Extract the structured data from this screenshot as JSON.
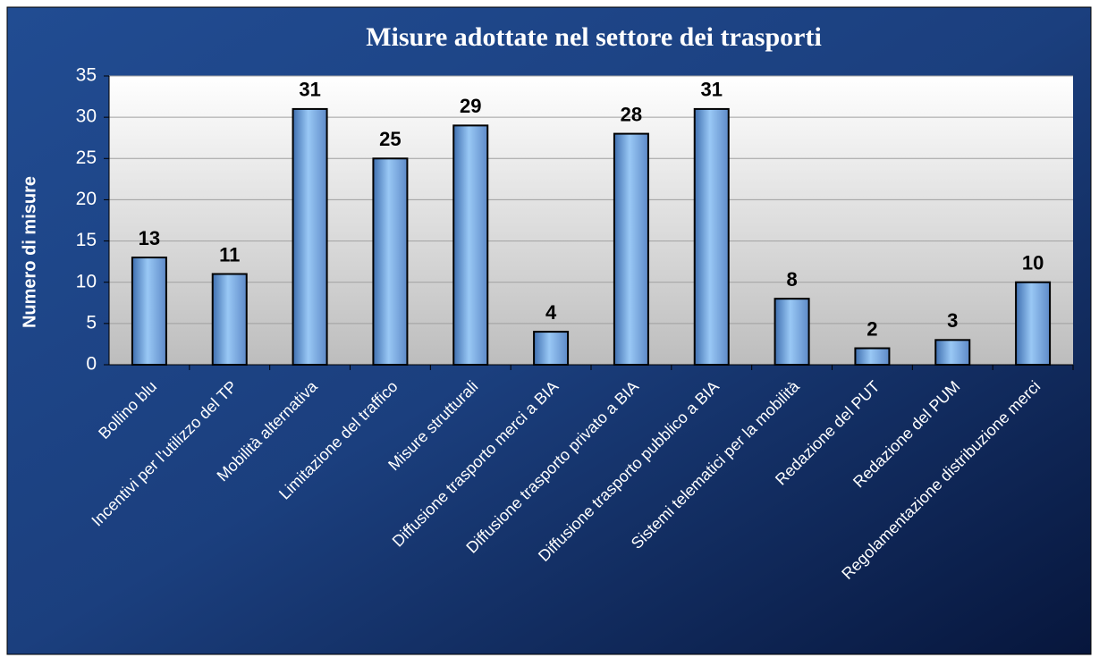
{
  "chart_data": {
    "type": "bar",
    "title": "Misure adottate nel settore dei trasporti",
    "y_label": "Numero di misure",
    "categories": [
      "Bollino blu",
      "Incentivi per l'utilizzo del TP",
      "Mobilità alternativa",
      "Limitazione del traffico",
      "Misure strutturali",
      "Diffusione trasporto merci a BIA",
      "Diffusione trasporto privato a BIA",
      "Diffusione trasporto pubblico a BIA",
      "Sistemi telematici per la mobilità",
      "Redazione del PUT",
      "Redazione del PUM",
      "Regolamentazione distribuzione merci"
    ],
    "values": [
      13,
      11,
      31,
      25,
      29,
      4,
      28,
      31,
      8,
      2,
      3,
      10
    ],
    "color": "#99c8f5",
    "ylim": [
      0,
      35
    ],
    "yticks": [
      0,
      5,
      10,
      15,
      20,
      25,
      30,
      35
    ],
    "grid": true
  }
}
